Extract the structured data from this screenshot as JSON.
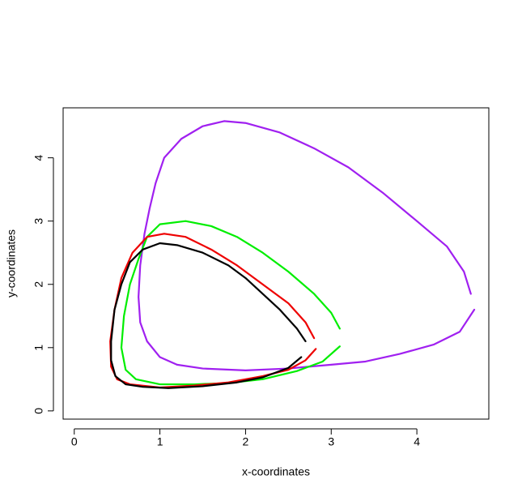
{
  "chart_data": {
    "type": "line",
    "xlabel": "x-coordinates",
    "ylabel": "y-coordinates",
    "xlim": [
      -0.13,
      4.84
    ],
    "ylim": [
      -0.13,
      4.79
    ],
    "xticks": [
      0,
      1,
      2,
      3,
      4
    ],
    "yticks": [
      0,
      1,
      2,
      3,
      4
    ],
    "series": [
      {
        "color": "#a020f0",
        "x": [
          4.63,
          4.55,
          4.35,
          4.0,
          3.6,
          3.2,
          2.8,
          2.4,
          2.0,
          1.75,
          1.5,
          1.25,
          1.05,
          0.95,
          0.88,
          0.82,
          0.77,
          0.75,
          0.77,
          0.85,
          1.0,
          1.2,
          1.5,
          2.0,
          2.5,
          3.0,
          3.4,
          3.8,
          4.2,
          4.5,
          4.67
        ],
        "values": [
          1.85,
          2.2,
          2.6,
          3.0,
          3.45,
          3.85,
          4.15,
          4.4,
          4.55,
          4.58,
          4.5,
          4.3,
          4.0,
          3.6,
          3.2,
          2.8,
          2.3,
          1.8,
          1.4,
          1.1,
          0.85,
          0.73,
          0.67,
          0.64,
          0.67,
          0.73,
          0.78,
          0.9,
          1.05,
          1.25,
          1.6
        ]
      },
      {
        "color": "#00ee00",
        "x": [
          3.1,
          3.0,
          2.8,
          2.5,
          2.2,
          1.9,
          1.6,
          1.3,
          1.0,
          0.85,
          0.75,
          0.65,
          0.58,
          0.55,
          0.6,
          0.72,
          1.0,
          1.4,
          1.8,
          2.2,
          2.6,
          2.9,
          3.1
        ],
        "values": [
          1.3,
          1.55,
          1.85,
          2.2,
          2.5,
          2.75,
          2.92,
          3.0,
          2.95,
          2.75,
          2.4,
          2.0,
          1.5,
          1.0,
          0.65,
          0.5,
          0.42,
          0.42,
          0.44,
          0.5,
          0.63,
          0.78,
          1.02
        ]
      },
      {
        "color": "#ee0000",
        "x": [
          2.8,
          2.7,
          2.5,
          2.2,
          1.9,
          1.6,
          1.3,
          1.05,
          0.85,
          0.68,
          0.55,
          0.47,
          0.42,
          0.43,
          0.5,
          0.65,
          1.0,
          1.4,
          1.8,
          2.2,
          2.5,
          2.7,
          2.82
        ],
        "values": [
          1.15,
          1.4,
          1.7,
          2.0,
          2.3,
          2.55,
          2.75,
          2.8,
          2.75,
          2.5,
          2.1,
          1.6,
          1.1,
          0.7,
          0.5,
          0.42,
          0.37,
          0.4,
          0.45,
          0.55,
          0.65,
          0.8,
          0.98
        ]
      },
      {
        "color": "#000000",
        "x": [
          2.7,
          2.6,
          2.4,
          2.2,
          2.0,
          1.8,
          1.5,
          1.2,
          1.0,
          0.8,
          0.65,
          0.55,
          0.47,
          0.43,
          0.43,
          0.48,
          0.6,
          0.8,
          1.1,
          1.5,
          1.9,
          2.2,
          2.5,
          2.65
        ],
        "values": [
          1.1,
          1.3,
          1.6,
          1.85,
          2.1,
          2.3,
          2.5,
          2.62,
          2.65,
          2.55,
          2.35,
          2.0,
          1.6,
          1.1,
          0.8,
          0.55,
          0.42,
          0.38,
          0.36,
          0.39,
          0.45,
          0.53,
          0.68,
          0.85
        ]
      }
    ]
  }
}
